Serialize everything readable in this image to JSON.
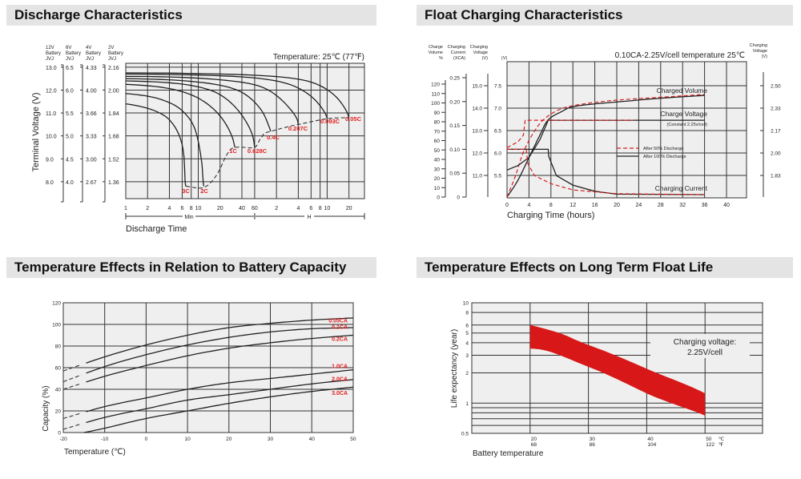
{
  "headers": {
    "discharge": "Discharge Characteristics",
    "float": "Float Charging Characteristics",
    "temp_capacity": "Temperature Effects in Relation to Battery Capacity",
    "float_life": "Temperature Effects on Long Term Float Life"
  },
  "chart_data": [
    {
      "type": "line",
      "id": "discharge",
      "title": "Discharge Characteristics",
      "annotation": "Temperature: 25℃ (77℉)",
      "xlabel": "Discharge Time",
      "ylabel": "Terminal Voltage (V)",
      "xscale": "log",
      "x_unit": "minutes",
      "xlim": [
        1,
        1960
      ],
      "ylim": [
        7.27,
        13.17
      ],
      "grid": true,
      "x_tick_labels": [
        "1",
        "2",
        "4",
        "6",
        "8",
        "10",
        "20",
        "40",
        "60",
        "2",
        "4",
        "6",
        "8",
        "10",
        "20"
      ],
      "x_ranges": [
        {
          "label": "Min"
        },
        {
          "label": "H"
        }
      ],
      "y_axes": [
        {
          "header": [
            "12V",
            "Battery",
            "JVJ"
          ],
          "ticks": [
            "13.0",
            "12.0",
            "11.0",
            "10.0",
            "9.0",
            "8.0"
          ]
        },
        {
          "header": [
            "6V",
            "Battery",
            "JVJ"
          ],
          "ticks": [
            "6.5",
            "6.0",
            "5.5",
            "5.0",
            "4.5",
            "4.0"
          ]
        },
        {
          "header": [
            "4V",
            "Battery",
            "JVJ"
          ],
          "ticks": [
            "4.33",
            "4.00",
            "3.66",
            "3.33",
            "3.00",
            "2.67"
          ]
        },
        {
          "header": [
            "2V",
            "Battery",
            "JVJ"
          ],
          "ticks": [
            "2.16",
            "2.00",
            "1.84",
            "1.68",
            "1.52",
            "1.36"
          ]
        }
      ],
      "series": [
        {
          "name": "3C",
          "points": [
            [
              1,
              11.4
            ],
            [
              2.5,
              11.1
            ],
            [
              4,
              10.7
            ],
            [
              5.5,
              10.0
            ],
            [
              6.3,
              9.2
            ],
            [
              6.6,
              8.0
            ],
            [
              6.8,
              7.8
            ]
          ]
        },
        {
          "name": "2C",
          "points": [
            [
              1,
              11.85
            ],
            [
              3,
              11.6
            ],
            [
              6,
              11.1
            ],
            [
              9,
              10.3
            ],
            [
              11,
              9.0
            ],
            [
              11.7,
              8.0
            ],
            [
              12,
              7.8
            ]
          ]
        },
        {
          "name": "1C",
          "points": [
            [
              1,
              12.25
            ],
            [
              5,
              12.0
            ],
            [
              12,
              11.5
            ],
            [
              22,
              10.7
            ],
            [
              29,
              10.0
            ],
            [
              32,
              9.5
            ]
          ]
        },
        {
          "name": "0.628C",
          "points": [
            [
              1,
              12.4
            ],
            [
              8,
              12.2
            ],
            [
              20,
              11.8
            ],
            [
              40,
              10.9
            ],
            [
              55,
              10.1
            ],
            [
              60,
              9.5
            ]
          ]
        },
        {
          "name": "0.4C",
          "points": [
            [
              1,
              12.5
            ],
            [
              10,
              12.35
            ],
            [
              40,
              11.9
            ],
            [
              75,
              11.1
            ],
            [
              95,
              10.4
            ],
            [
              100,
              10.2
            ]
          ]
        },
        {
          "name": "0.207C",
          "points": [
            [
              1,
              12.6
            ],
            [
              20,
              12.45
            ],
            [
              80,
              12.1
            ],
            [
              160,
              11.4
            ],
            [
              225,
              10.8
            ],
            [
              240,
              10.5
            ]
          ]
        },
        {
          "name": "0.093C",
          "points": [
            [
              1,
              12.7
            ],
            [
              30,
              12.6
            ],
            [
              200,
              12.2
            ],
            [
              400,
              11.6
            ],
            [
              560,
              11.0
            ],
            [
              600,
              10.75
            ]
          ]
        },
        {
          "name": "0.05C",
          "points": [
            [
              1,
              12.75
            ],
            [
              60,
              12.65
            ],
            [
              400,
              12.3
            ],
            [
              800,
              11.7
            ],
            [
              1100,
              11.1
            ],
            [
              1200,
              10.8
            ]
          ]
        }
      ],
      "cutoff_line": [
        [
          6.8,
          7.8
        ],
        [
          12,
          7.75
        ],
        [
          18,
          8.3
        ],
        [
          25,
          9.2
        ],
        [
          33,
          9.5
        ],
        [
          60,
          9.5
        ],
        [
          75,
          9.95
        ],
        [
          100,
          10.2
        ],
        [
          240,
          10.5
        ],
        [
          600,
          10.75
        ],
        [
          1200,
          10.8
        ]
      ],
      "label_color": "#e02020"
    },
    {
      "type": "line",
      "id": "float",
      "title": "0.10CA-2.25V/cell  temperature 25℃",
      "xlabel": "Charging Time (hours)",
      "xlim": [
        0,
        43.6
      ],
      "grid": true,
      "x_ticks": [
        0,
        4,
        8,
        12,
        16,
        20,
        24,
        28,
        32,
        36,
        40
      ],
      "axes": {
        "volume": {
          "header": [
            "Charge",
            "Volume",
            "%"
          ],
          "ticks": [
            0,
            10,
            20,
            30,
            40,
            50,
            60,
            70,
            80,
            90,
            100,
            110,
            120
          ]
        },
        "current": {
          "header": [
            "Charging",
            "Current",
            "(XCA)"
          ],
          "ticks": [
            "0",
            "0.05",
            "0.10",
            "0.15",
            "0.20",
            "0.25"
          ]
        },
        "voltage12": {
          "header": [
            "Charging",
            "Voltage",
            "(V)"
          ],
          "ticks": [
            "11.0",
            "12.0",
            "13.0",
            "14.0",
            "15.0"
          ]
        },
        "voltage6": {
          "header": [
            "(V)"
          ],
          "ticks": [
            "5.5",
            "6.0",
            "6.5",
            "7.0",
            "7.5"
          ],
          "ylim": [
            4.98,
            8.04
          ]
        },
        "voltage2": {
          "header": [
            "Charging",
            "Voltage",
            "(V)"
          ],
          "ticks": [
            "1.83",
            "2.00",
            "2.17",
            "2.33",
            "2.50"
          ]
        }
      },
      "series": [
        {
          "name": "Charged Volume",
          "condition": "After 100% Discharge",
          "axis": "volume",
          "points": [
            [
              0,
              0
            ],
            [
              2,
              18
            ],
            [
              4,
              42
            ],
            [
              6,
              66
            ],
            [
              7.5,
              82
            ],
            [
              10,
              91
            ],
            [
              12,
              96
            ],
            [
              16,
              99
            ],
            [
              20,
              101
            ],
            [
              28,
              105
            ],
            [
              36,
              108
            ]
          ]
        },
        {
          "name": "Charged Volume",
          "condition": "After 50% Discharge",
          "axis": "volume",
          "points": [
            [
              0,
              0
            ],
            [
              1.5,
              22
            ],
            [
              3,
              48
            ],
            [
              5,
              70
            ],
            [
              7,
              84
            ],
            [
              10,
              94
            ],
            [
              14,
              99
            ],
            [
              20,
              103
            ],
            [
              28,
              106
            ],
            [
              36,
              109
            ]
          ]
        },
        {
          "name": "Charge Voltage",
          "condition": "After 100% Discharge",
          "axis": "voltage6",
          "points": [
            [
              0,
              5.62
            ],
            [
              2,
              5.72
            ],
            [
              4,
              5.9
            ],
            [
              6,
              6.3
            ],
            [
              7.5,
              6.73
            ],
            [
              36,
              6.73
            ]
          ]
        },
        {
          "name": "Charge Voltage",
          "condition": "After 50% Discharge",
          "axis": "voltage6",
          "points": [
            [
              0,
              6.12
            ],
            [
              2,
              6.25
            ],
            [
              3,
              6.4
            ],
            [
              3.3,
              6.73
            ],
            [
              23,
              6.73
            ]
          ]
        },
        {
          "name": "Charging Current",
          "condition": "After 100% Discharge",
          "axis": "current",
          "points": [
            [
              0,
              0.1
            ],
            [
              7.5,
              0.1
            ],
            [
              7.6,
              0.085
            ],
            [
              9,
              0.045
            ],
            [
              12,
              0.025
            ],
            [
              16,
              0.012
            ],
            [
              20,
              0.006
            ],
            [
              36,
              0.005
            ]
          ]
        },
        {
          "name": "Charging Current",
          "condition": "After 50% Discharge",
          "axis": "current",
          "points": [
            [
              0,
              0.1
            ],
            [
              3.5,
              0.1
            ],
            [
              3.8,
              0.07
            ],
            [
              5,
              0.045
            ],
            [
              8,
              0.028
            ],
            [
              12,
              0.015
            ],
            [
              20,
              0.007
            ],
            [
              36,
              0.005
            ]
          ]
        }
      ],
      "labels": {
        "volume": "Charged Volume",
        "voltage": "Charge Voltage",
        "voltage_note": "(Constant 2.25v/cell)",
        "current": "Charging Current"
      },
      "legend": [
        "After  50% Discharge",
        "After 100% Discharge"
      ],
      "legend_placement": "center-right",
      "colors": {
        "after_50": "#d42020",
        "after_100": "#222222"
      }
    },
    {
      "type": "line",
      "id": "temp_capacity",
      "xlabel": "Temperature (℃)",
      "ylabel": "Capacity (%)",
      "xlim": [
        -20,
        50
      ],
      "ylim": [
        0,
        120
      ],
      "grid": true,
      "x_ticks": [
        -20,
        -10,
        0,
        10,
        20,
        30,
        40,
        50
      ],
      "y_ticks": [
        0,
        20,
        40,
        60,
        80,
        100,
        120
      ],
      "series": [
        {
          "name": "0.05CA",
          "points": [
            [
              -20,
              57
            ],
            [
              -10,
              70
            ],
            [
              0,
              81
            ],
            [
              10,
              90
            ],
            [
              20,
              97
            ],
            [
              30,
              101
            ],
            [
              40,
              104
            ],
            [
              50,
              106
            ]
          ]
        },
        {
          "name": "0.1CA",
          "points": [
            [
              -20,
              47
            ],
            [
              -10,
              61
            ],
            [
              0,
              72
            ],
            [
              10,
              81
            ],
            [
              20,
              88
            ],
            [
              30,
              93
            ],
            [
              40,
              96
            ],
            [
              50,
              97
            ]
          ]
        },
        {
          "name": "0.2CA",
          "points": [
            [
              -20,
              40
            ],
            [
              -10,
              52
            ],
            [
              0,
              62
            ],
            [
              10,
              71
            ],
            [
              20,
              78
            ],
            [
              30,
              83
            ],
            [
              40,
              87
            ],
            [
              50,
              90
            ]
          ]
        },
        {
          "name": "1.0CA",
          "points": [
            [
              -20,
              13
            ],
            [
              -10,
              24
            ],
            [
              0,
              32
            ],
            [
              10,
              40
            ],
            [
              20,
              46
            ],
            [
              30,
              50
            ],
            [
              40,
              54
            ],
            [
              50,
              58
            ]
          ]
        },
        {
          "name": "2.0CA",
          "points": [
            [
              -20,
              3
            ],
            [
              -10,
              14
            ],
            [
              0,
              22
            ],
            [
              10,
              30
            ],
            [
              20,
              35
            ],
            [
              30,
              40
            ],
            [
              40,
              45
            ],
            [
              50,
              49
            ]
          ]
        },
        {
          "name": "3.0CA",
          "points": [
            [
              -15,
              0
            ],
            [
              -10,
              4
            ],
            [
              0,
              13
            ],
            [
              10,
              20
            ],
            [
              20,
              27
            ],
            [
              30,
              33
            ],
            [
              40,
              38
            ],
            [
              50,
              42
            ]
          ]
        }
      ],
      "dashed_below": -15,
      "label_color": "#e02020"
    },
    {
      "type": "area",
      "id": "float_life",
      "xlabel": "Battery temperature",
      "ylabel": "Life expectancy (year)",
      "yscale": "log",
      "xlim": [
        10,
        60
      ],
      "ylim": [
        0.5,
        10
      ],
      "grid": true,
      "y_ticks": [
        "10",
        "8",
        "6",
        "5",
        "4",
        "3",
        "2",
        "1",
        "0.5"
      ],
      "x_ticks": [
        {
          "c": "20",
          "f": "68"
        },
        {
          "c": "30",
          "f": "86"
        },
        {
          "c": "40",
          "f": "104"
        },
        {
          "c": "50",
          "f": "122"
        }
      ],
      "x_units": {
        "c": "℃",
        "f": "℉"
      },
      "band_upper": [
        [
          20,
          6
        ],
        [
          25,
          5
        ],
        [
          30,
          3.8
        ],
        [
          40,
          2.2
        ],
        [
          50,
          1.25
        ]
      ],
      "band_lower": [
        [
          20,
          3.5
        ],
        [
          23,
          3.3
        ],
        [
          30,
          2.3
        ],
        [
          40,
          1.25
        ],
        [
          50,
          0.75
        ]
      ],
      "band_color": "#d81818",
      "annotation": [
        "Charging voltage:",
        "2.25V/cell"
      ]
    }
  ]
}
